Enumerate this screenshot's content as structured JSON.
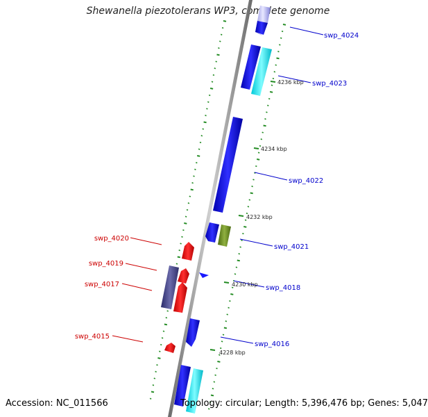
{
  "title": "Shewanella piezotolerans WP3, complete genome",
  "footer": {
    "accession": "Accession: NC_011566",
    "summary": "Topology: circular; Length: 5,396,476 bp; Genes: 5,047"
  },
  "colors": {
    "forward_label": "#0000cc",
    "reverse_label": "#cc0000",
    "tick": "#228b22",
    "backbone": "#999999"
  },
  "scale_labels": [
    "4236 kbp",
    "4234 kbp",
    "4232 kbp",
    "4230 kbp",
    "4228 kbp"
  ],
  "genes": [
    {
      "id": "swp_4024",
      "strand": "forward",
      "color": "#1a1aff"
    },
    {
      "id": "swp_4023",
      "strand": "forward",
      "color": "#1a1aff"
    },
    {
      "id": "swp_4022",
      "strand": "forward",
      "color": "#1a1aff"
    },
    {
      "id": "swp_4021",
      "strand": "forward",
      "color": "#1a1aff"
    },
    {
      "id": "swp_4018",
      "strand": "forward",
      "color": "#1a1aff"
    },
    {
      "id": "swp_4016",
      "strand": "forward",
      "color": "#1a1aff"
    },
    {
      "id": "swp_4020",
      "strand": "reverse",
      "color": "#ff1a1a"
    },
    {
      "id": "swp_4019",
      "strand": "reverse",
      "color": "#ff1a1a"
    },
    {
      "id": "swp_4017",
      "strand": "reverse",
      "color": "#ff1a1a"
    },
    {
      "id": "swp_4015",
      "strand": "reverse",
      "color": "#ff1a1a"
    }
  ]
}
